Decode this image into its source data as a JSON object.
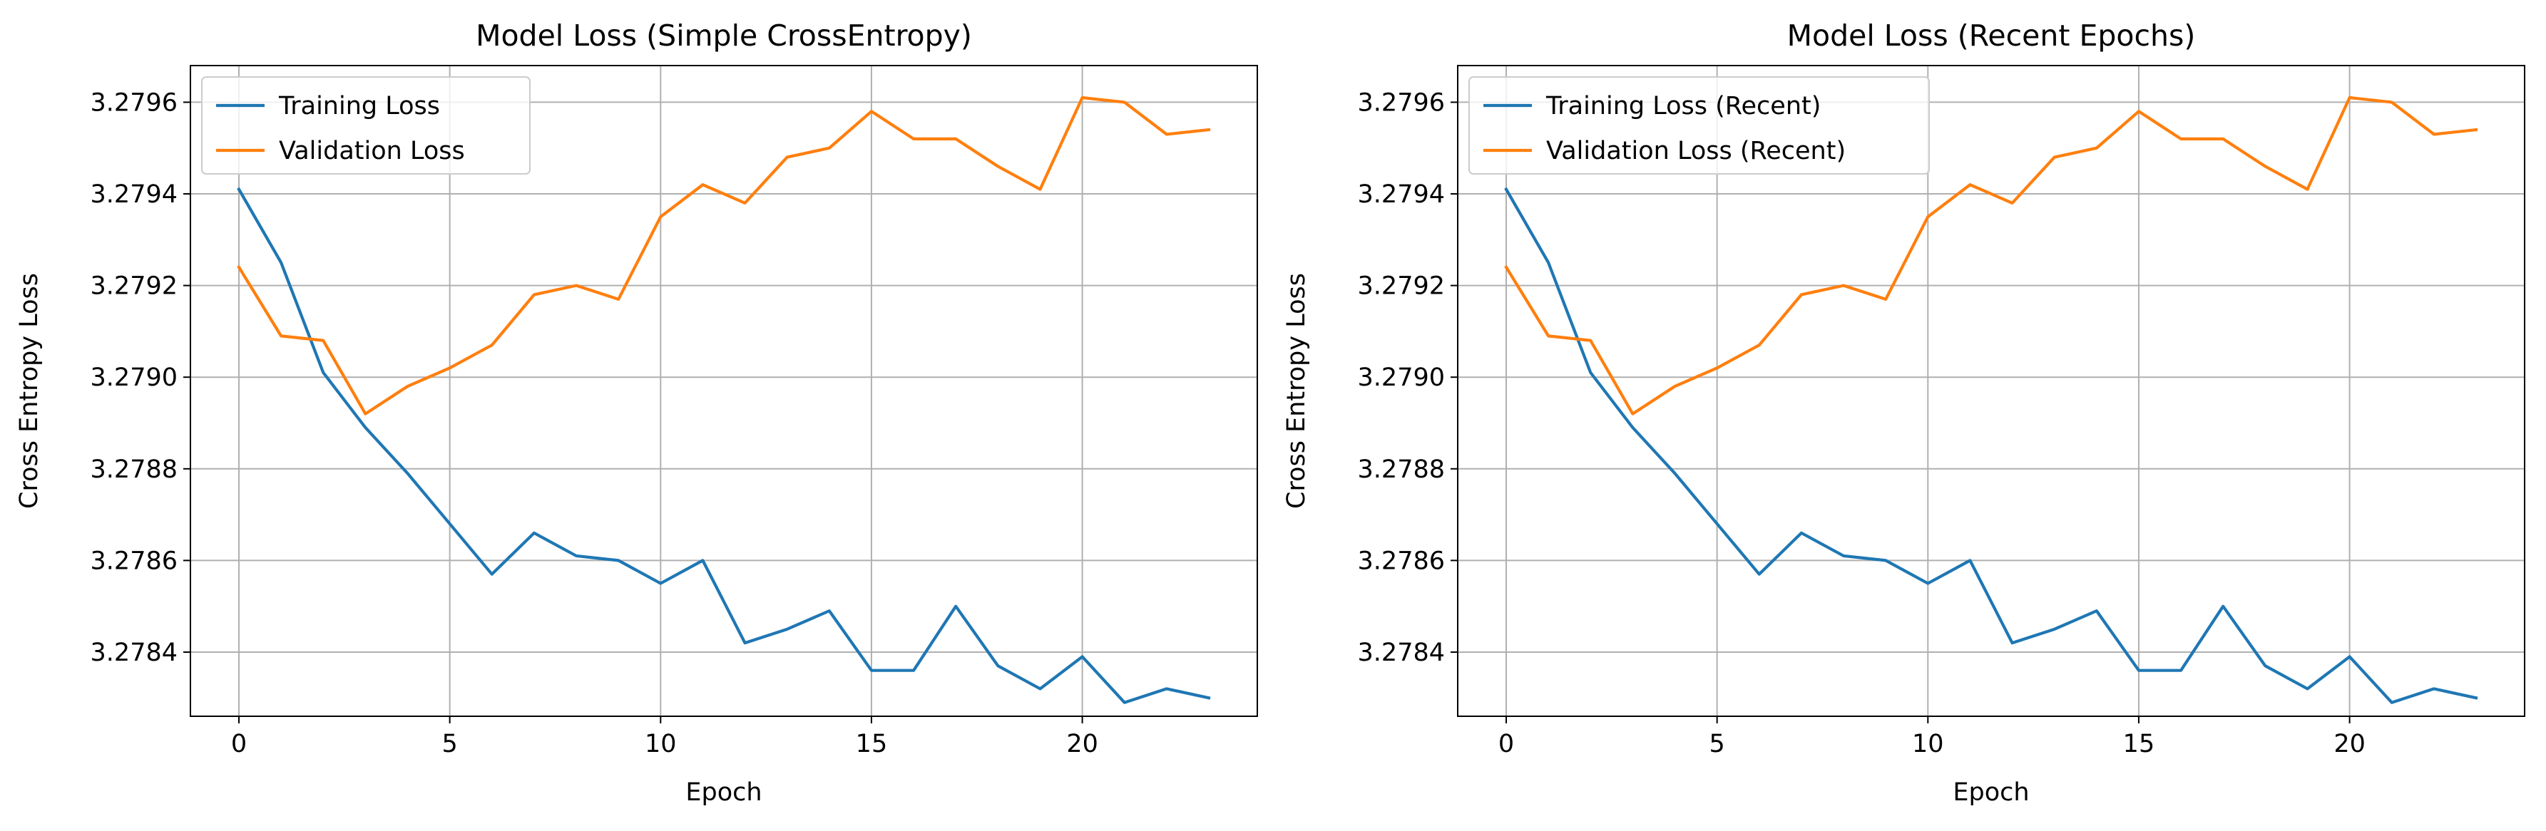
{
  "chart_data": [
    {
      "type": "line",
      "title": "Model Loss (Simple CrossEntropy)",
      "xlabel": "Epoch",
      "ylabel": "Cross Entropy Loss",
      "xlim": [
        -1.15,
        24.15
      ],
      "ylim": [
        3.27826,
        3.27968
      ],
      "xticks": [
        0,
        5,
        10,
        15,
        20
      ],
      "xtick_labels": [
        "0",
        "5",
        "10",
        "15",
        "20"
      ],
      "yticks": [
        3.2784,
        3.2786,
        3.2788,
        3.279,
        3.2792,
        3.2794,
        3.2796
      ],
      "ytick_labels": [
        "3.2784",
        "3.2786",
        "3.2788",
        "3.2790",
        "3.2792",
        "3.2794",
        "3.2796"
      ],
      "grid": true,
      "legend_position": "top-left",
      "x": [
        0,
        1,
        2,
        3,
        4,
        5,
        6,
        7,
        8,
        9,
        10,
        11,
        12,
        13,
        14,
        15,
        16,
        17,
        18,
        19,
        20,
        21,
        22,
        23
      ],
      "series": [
        {
          "name": "Training Loss",
          "color": "#1f77b4",
          "values": [
            3.27941,
            3.27925,
            3.27901,
            3.27889,
            3.27879,
            3.27868,
            3.27857,
            3.27866,
            3.27861,
            3.2786,
            3.27855,
            3.2786,
            3.27842,
            3.27845,
            3.27849,
            3.27836,
            3.27836,
            3.2785,
            3.27837,
            3.27832,
            3.27839,
            3.27829,
            3.27832,
            3.2783
          ]
        },
        {
          "name": "Validation Loss",
          "color": "#ff7f0e",
          "values": [
            3.27924,
            3.27909,
            3.27908,
            3.27892,
            3.27898,
            3.27902,
            3.27907,
            3.27918,
            3.2792,
            3.27917,
            3.27935,
            3.27942,
            3.27938,
            3.27948,
            3.2795,
            3.27958,
            3.27952,
            3.27952,
            3.27946,
            3.27941,
            3.27961,
            3.2796,
            3.27953,
            3.27954
          ]
        }
      ]
    },
    {
      "type": "line",
      "title": "Model Loss (Recent Epochs)",
      "xlabel": "Epoch",
      "ylabel": "Cross Entropy Loss",
      "xlim": [
        -1.15,
        24.15
      ],
      "ylim": [
        3.27826,
        3.27968
      ],
      "xticks": [
        0,
        5,
        10,
        15,
        20
      ],
      "xtick_labels": [
        "0",
        "5",
        "10",
        "15",
        "20"
      ],
      "yticks": [
        3.2784,
        3.2786,
        3.2788,
        3.279,
        3.2792,
        3.2794,
        3.2796
      ],
      "ytick_labels": [
        "3.2784",
        "3.2786",
        "3.2788",
        "3.2790",
        "3.2792",
        "3.2794",
        "3.2796"
      ],
      "grid": true,
      "legend_position": "top-left",
      "x": [
        0,
        1,
        2,
        3,
        4,
        5,
        6,
        7,
        8,
        9,
        10,
        11,
        12,
        13,
        14,
        15,
        16,
        17,
        18,
        19,
        20,
        21,
        22,
        23
      ],
      "series": [
        {
          "name": "Training Loss (Recent)",
          "color": "#1f77b4",
          "values": [
            3.27941,
            3.27925,
            3.27901,
            3.27889,
            3.27879,
            3.27868,
            3.27857,
            3.27866,
            3.27861,
            3.2786,
            3.27855,
            3.2786,
            3.27842,
            3.27845,
            3.27849,
            3.27836,
            3.27836,
            3.2785,
            3.27837,
            3.27832,
            3.27839,
            3.27829,
            3.27832,
            3.2783
          ]
        },
        {
          "name": "Validation Loss (Recent)",
          "color": "#ff7f0e",
          "values": [
            3.27924,
            3.27909,
            3.27908,
            3.27892,
            3.27898,
            3.27902,
            3.27907,
            3.27918,
            3.2792,
            3.27917,
            3.27935,
            3.27942,
            3.27938,
            3.27948,
            3.2795,
            3.27958,
            3.27952,
            3.27952,
            3.27946,
            3.27941,
            3.27961,
            3.2796,
            3.27953,
            3.27954
          ]
        }
      ]
    }
  ]
}
